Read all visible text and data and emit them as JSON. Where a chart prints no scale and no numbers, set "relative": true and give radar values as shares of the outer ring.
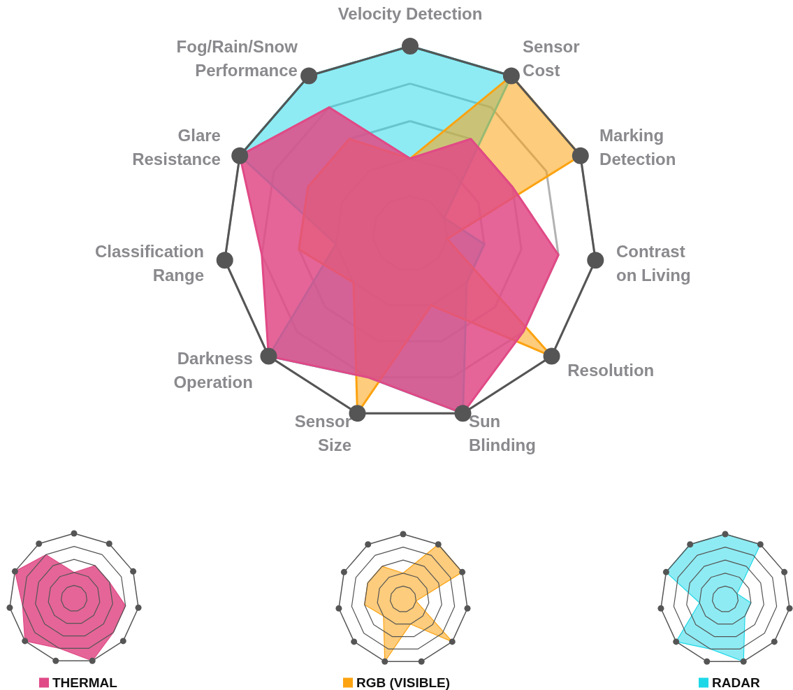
{
  "chart_data": {
    "type": "radar",
    "relative": true,
    "legend": "bottom",
    "categories": [
      "Velocity Detection",
      "Sensor Cost",
      "Marking Detection",
      "Contrast on Living",
      "Resolution",
      "Sun Blinding",
      "Sensor Size",
      "Darkness Operation",
      "Classification Range",
      "Glare Resistance",
      "Fog/Rain/Snow Performance"
    ],
    "series": [
      {
        "name": "THERMAL",
        "color": "#e04a86",
        "values": [
          0.4,
          0.6,
          0.6,
          0.8,
          0.8,
          1.0,
          0.8,
          1.0,
          0.8,
          1.0,
          0.8
        ]
      },
      {
        "name": "RGB (VISIBLE)",
        "color": "#fca311",
        "values": [
          0.4,
          1.0,
          1.0,
          0.2,
          1.0,
          0.4,
          1.0,
          0.4,
          0.6,
          0.6,
          0.6
        ]
      },
      {
        "name": "RADAR",
        "color": "#1ed8e8",
        "values": [
          1.0,
          1.0,
          0.2,
          0.4,
          0.4,
          1.0,
          0.8,
          1.0,
          0.4,
          1.0,
          1.0
        ]
      }
    ]
  }
}
